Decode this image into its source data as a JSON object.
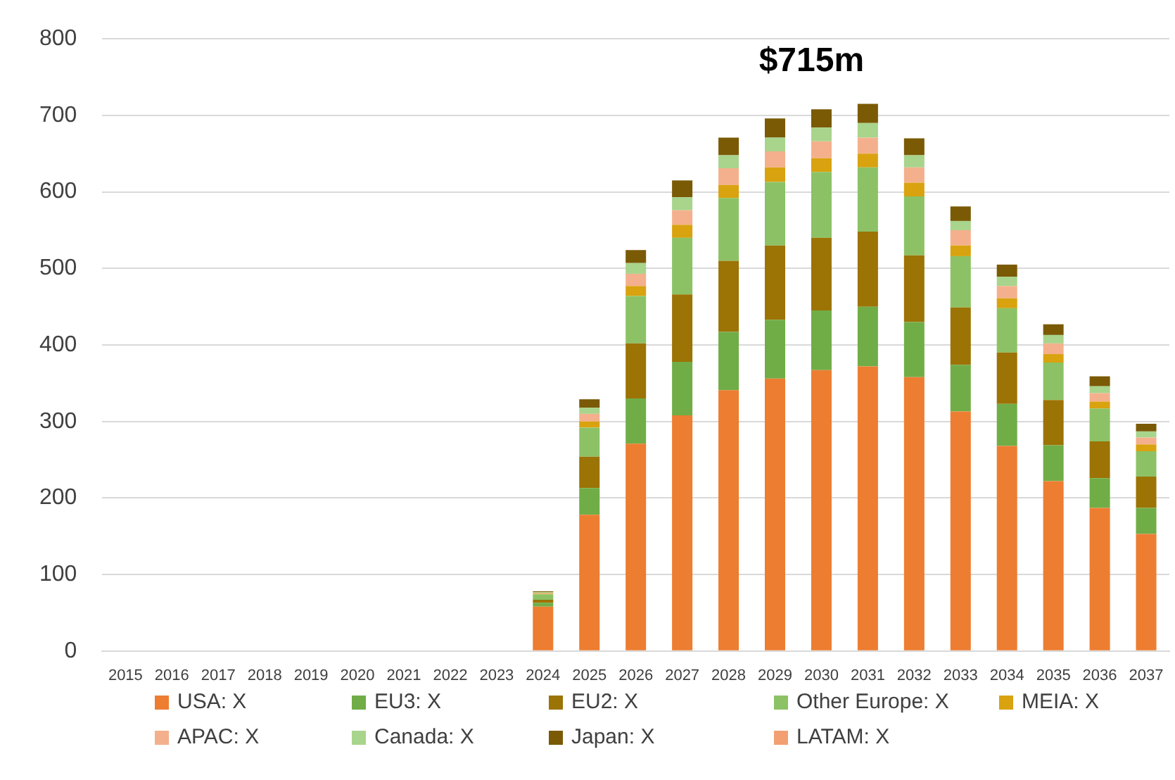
{
  "chart_data": {
    "type": "bar",
    "stacked": true,
    "categories": [
      "2015",
      "2016",
      "2017",
      "2018",
      "2019",
      "2020",
      "2021",
      "2022",
      "2023",
      "2024",
      "2025",
      "2026",
      "2027",
      "2028",
      "2029",
      "2030",
      "2031",
      "2032",
      "2033",
      "2034",
      "2035",
      "2036",
      "2037"
    ],
    "series": [
      {
        "name": "USA: X",
        "color": "#ed7d31",
        "values": [
          0,
          0,
          0,
          0,
          0,
          0,
          0,
          0,
          0,
          58,
          178,
          271,
          308,
          341,
          356,
          367,
          372,
          358,
          313,
          268,
          222,
          187,
          153
        ]
      },
      {
        "name": "EU3: X",
        "color": "#70ad47",
        "values": [
          0,
          0,
          0,
          0,
          0,
          0,
          0,
          0,
          0,
          5,
          35,
          59,
          70,
          76,
          77,
          78,
          78,
          72,
          61,
          55,
          47,
          39,
          34
        ]
      },
      {
        "name": "EU2: X",
        "color": "#9c7305",
        "values": [
          0,
          0,
          0,
          0,
          0,
          0,
          0,
          0,
          0,
          4,
          41,
          72,
          88,
          93,
          97,
          95,
          98,
          87,
          75,
          67,
          59,
          48,
          41
        ]
      },
      {
        "name": "Other Europe: X",
        "color": "#8cc265",
        "values": [
          0,
          0,
          0,
          0,
          0,
          0,
          0,
          0,
          0,
          7,
          38,
          62,
          74,
          82,
          83,
          86,
          84,
          77,
          67,
          58,
          49,
          43,
          33
        ]
      },
      {
        "name": "MEIA: X",
        "color": "#d9a20f",
        "values": [
          0,
          0,
          0,
          0,
          0,
          0,
          0,
          0,
          0,
          1,
          8,
          13,
          17,
          17,
          19,
          18,
          18,
          18,
          14,
          13,
          11,
          9,
          9
        ]
      },
      {
        "name": "APAC: X",
        "color": "#f4b08c",
        "values": [
          0,
          0,
          0,
          0,
          0,
          0,
          0,
          0,
          0,
          1,
          10,
          16,
          19,
          22,
          21,
          22,
          21,
          20,
          20,
          16,
          14,
          11,
          9
        ]
      },
      {
        "name": "Canada: X",
        "color": "#a8d48c",
        "values": [
          0,
          0,
          0,
          0,
          0,
          0,
          0,
          0,
          0,
          1,
          8,
          14,
          17,
          17,
          18,
          18,
          19,
          16,
          12,
          12,
          11,
          9,
          8
        ]
      },
      {
        "name": "Japan: X",
        "color": "#7a5a05",
        "values": [
          0,
          0,
          0,
          0,
          0,
          0,
          0,
          0,
          0,
          1,
          11,
          17,
          22,
          23,
          25,
          24,
          25,
          22,
          19,
          16,
          14,
          13,
          10
        ]
      },
      {
        "name": "LATAM: X",
        "color": "#f2a072",
        "values": [
          0,
          0,
          0,
          0,
          0,
          0,
          0,
          0,
          0,
          0,
          0,
          0,
          0,
          0,
          0,
          0,
          0,
          0,
          0,
          0,
          0,
          0,
          0
        ]
      }
    ],
    "ylim": [
      0,
      800
    ],
    "yticks": [
      0,
      100,
      200,
      300,
      400,
      500,
      600,
      700,
      800
    ],
    "grid": "y",
    "legend": "bottom",
    "annotations": [
      {
        "text": "$715m",
        "x": "2031",
        "y": 715
      }
    ]
  }
}
